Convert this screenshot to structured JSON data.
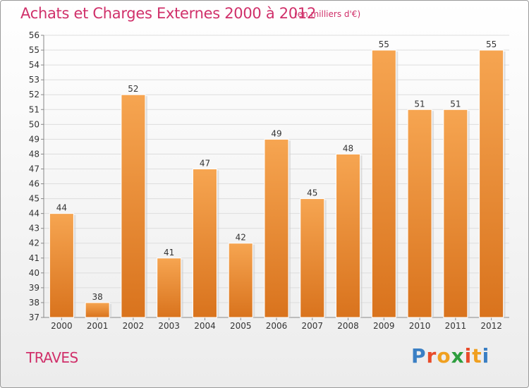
{
  "title": "Achats et Charges Externes 2000 à 2012",
  "unit_note": "(en milliers d'€)",
  "commune": "TRAVES",
  "logo": {
    "text": "Proxiti",
    "letter_colors": [
      "#3a7fc4",
      "#e84b2a",
      "#f0a020",
      "#2e9e3e",
      "#e84b2a",
      "#f0a020",
      "#3a7fc4"
    ]
  },
  "colors": {
    "title": "#d0306a",
    "bar_light": "#f6a551",
    "bar_dark": "#d9731d",
    "grid": "#dddddd"
  },
  "chart_data": {
    "type": "bar",
    "title": "Achats et Charges Externes 2000 à 2012",
    "subtitle": "(en milliers d'€)",
    "xlabel": "",
    "ylabel": "",
    "categories": [
      "2000",
      "2001",
      "2002",
      "2003",
      "2004",
      "2005",
      "2006",
      "2007",
      "2008",
      "2009",
      "2010",
      "2011",
      "2012"
    ],
    "values": [
      44,
      38,
      52,
      41,
      47,
      42,
      49,
      45,
      48,
      55,
      51,
      51,
      55
    ],
    "ylim": [
      37,
      56
    ],
    "yticks": [
      37,
      38,
      39,
      40,
      41,
      42,
      43,
      44,
      45,
      46,
      47,
      48,
      49,
      50,
      51,
      52,
      53,
      54,
      55,
      56
    ],
    "grid": true,
    "data_labels": true
  }
}
